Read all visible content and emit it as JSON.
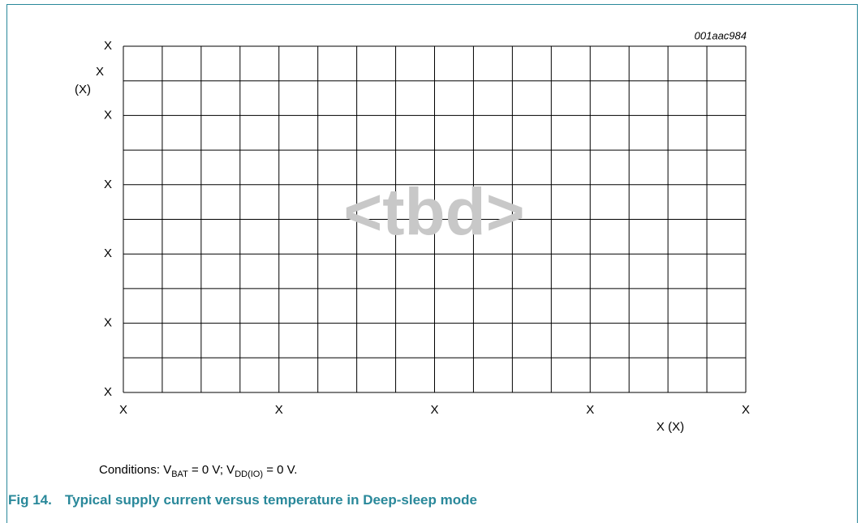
{
  "figure": {
    "id": "001aac984",
    "watermark": "<tbd>",
    "y_axis": {
      "title": "X",
      "unit": "(X)",
      "ticks": [
        "X",
        "X",
        "X",
        "X",
        "X",
        "X"
      ]
    },
    "x_axis": {
      "title": "X (X)",
      "ticks": [
        "X",
        "X",
        "X",
        "X",
        "X"
      ]
    },
    "conditions": {
      "prefix": "Conditions: V",
      "sub1": "BAT",
      "mid": " = 0 V; V",
      "sub2": "DD(IO)",
      "suffix": " = 0 V."
    },
    "caption": {
      "number": "Fig 14.",
      "text": "Typical supply current versus temperature in Deep-sleep mode"
    }
  }
}
